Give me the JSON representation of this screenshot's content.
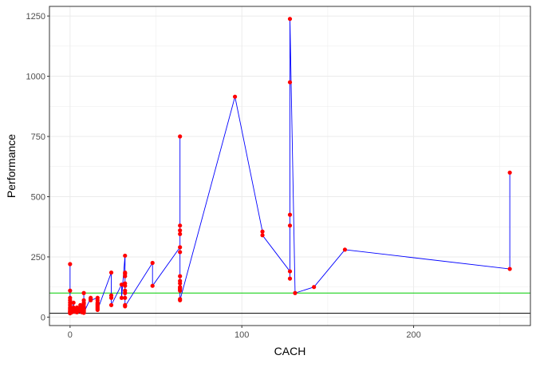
{
  "chart_data": {
    "type": "line",
    "title": "",
    "xlabel": "CACH",
    "ylabel": "Performance",
    "xlim": [
      -12,
      268
    ],
    "ylim": [
      -35,
      1290
    ],
    "x_ticks": [
      0,
      100,
      200
    ],
    "y_ticks": [
      0,
      250,
      500,
      750,
      1000,
      1250
    ],
    "x_tick_labels": [
      "0",
      "100",
      "200"
    ],
    "y_tick_labels": [
      "0",
      "250",
      "500",
      "750",
      "1000",
      "1250"
    ],
    "grid": true,
    "reference_lines": [
      {
        "y": 100,
        "color": "#00cd00"
      },
      {
        "y": 16,
        "color": "#000000"
      }
    ],
    "series": [
      {
        "color_line": "#0000ff",
        "color_points": "#ff0000",
        "points": [
          [
            0,
            220
          ],
          [
            0,
            110
          ],
          [
            0,
            80
          ],
          [
            0,
            70
          ],
          [
            0,
            60
          ],
          [
            0,
            50
          ],
          [
            0,
            40
          ],
          [
            0,
            35
          ],
          [
            0,
            30
          ],
          [
            0,
            25
          ],
          [
            0,
            22
          ],
          [
            0,
            20
          ],
          [
            0,
            16
          ],
          [
            1,
            30
          ],
          [
            1,
            20
          ],
          [
            2,
            60
          ],
          [
            2,
            40
          ],
          [
            2,
            30
          ],
          [
            2,
            25
          ],
          [
            3,
            30
          ],
          [
            3,
            22
          ],
          [
            4,
            40
          ],
          [
            4,
            30
          ],
          [
            4,
            20
          ],
          [
            6,
            50
          ],
          [
            6,
            40
          ],
          [
            6,
            30
          ],
          [
            6,
            25
          ],
          [
            7,
            45
          ],
          [
            7,
            40
          ],
          [
            7,
            30
          ],
          [
            7,
            20
          ],
          [
            8,
            40
          ],
          [
            8,
            30
          ],
          [
            8,
            100
          ],
          [
            8,
            70
          ],
          [
            8,
            60
          ],
          [
            8,
            55
          ],
          [
            8,
            45
          ],
          [
            8,
            38
          ],
          [
            8,
            32
          ],
          [
            8,
            26
          ],
          [
            8,
            22
          ],
          [
            8,
            18
          ],
          [
            12,
            80
          ],
          [
            12,
            75
          ],
          [
            12,
            70
          ],
          [
            16,
            80
          ],
          [
            16,
            70
          ],
          [
            16,
            60
          ],
          [
            16,
            55
          ],
          [
            16,
            50
          ],
          [
            16,
            45
          ],
          [
            16,
            40
          ],
          [
            16,
            35
          ],
          [
            16,
            30
          ],
          [
            24,
            185
          ],
          [
            24,
            90
          ],
          [
            24,
            80
          ],
          [
            24,
            50
          ],
          [
            30,
            135
          ],
          [
            30,
            80
          ],
          [
            32,
            255
          ],
          [
            32,
            185
          ],
          [
            32,
            180
          ],
          [
            32,
            170
          ],
          [
            32,
            140
          ],
          [
            32,
            130
          ],
          [
            32,
            110
          ],
          [
            32,
            100
          ],
          [
            32,
            80
          ],
          [
            32,
            50
          ],
          [
            32,
            45
          ],
          [
            48,
            225
          ],
          [
            48,
            130
          ],
          [
            64,
            290
          ],
          [
            64,
            270
          ],
          [
            64,
            380
          ],
          [
            64,
            360
          ],
          [
            64,
            345
          ],
          [
            64,
            750
          ],
          [
            64,
            170
          ],
          [
            64,
            150
          ],
          [
            64,
            140
          ],
          [
            64,
            125
          ],
          [
            64,
            120
          ],
          [
            64,
            115
          ],
          [
            64,
            110
          ],
          [
            64,
            75
          ],
          [
            64,
            70
          ],
          [
            96,
            915
          ],
          [
            112,
            355
          ],
          [
            112,
            340
          ],
          [
            128,
            190
          ],
          [
            128,
            160
          ],
          [
            128,
            425
          ],
          [
            128,
            380
          ],
          [
            128,
            975
          ],
          [
            128,
            1238
          ],
          [
            131,
            100
          ],
          [
            142,
            125
          ],
          [
            160,
            280
          ],
          [
            256,
            200
          ],
          [
            256,
            600
          ]
        ]
      }
    ]
  }
}
